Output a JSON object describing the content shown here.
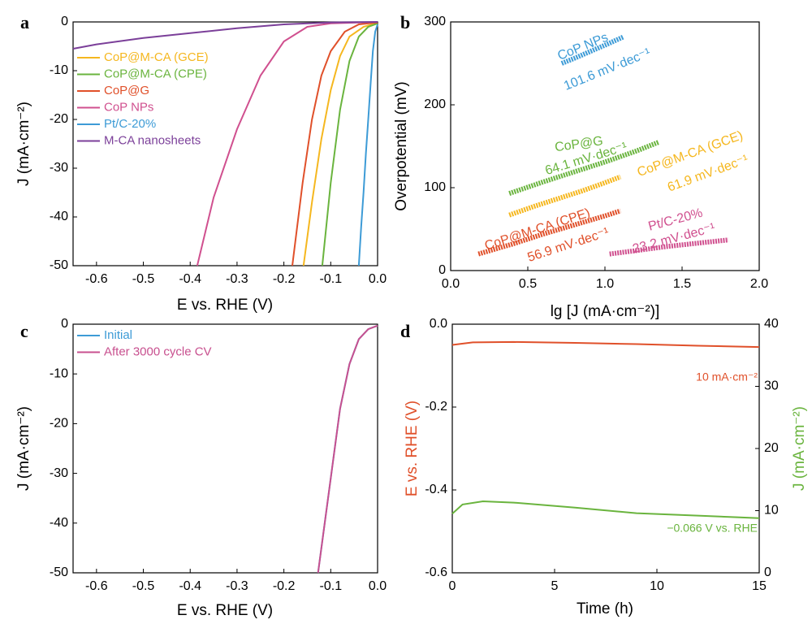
{
  "chart_data": [
    {
      "type": "line",
      "panel_label": "a",
      "xlabel": "E vs. RHE (V)",
      "ylabel": "J (mA·cm⁻²)",
      "xlim": [
        -0.65,
        0
      ],
      "ylim": [
        -50,
        0
      ],
      "xticks": [
        -0.6,
        -0.5,
        -0.4,
        -0.3,
        -0.2,
        -0.1,
        {
          "value": 0,
          "label": "0.0"
        }
      ],
      "yticks": [
        0,
        -10,
        -20,
        -30,
        -40,
        -50
      ],
      "legend": "upper left",
      "series": [
        {
          "name": "CoP@M-CA (GCE)",
          "color": "#f5b71f",
          "x": [
            0,
            -0.03,
            -0.06,
            -0.08,
            -0.1,
            -0.12,
            -0.14,
            -0.158
          ],
          "values": [
            -0.2,
            -1,
            -3,
            -7,
            -14,
            -24,
            -37,
            -50
          ]
        },
        {
          "name": "CoP@M-CA (CPE)",
          "color": "#6ab43e",
          "x": [
            0,
            -0.02,
            -0.04,
            -0.06,
            -0.08,
            -0.1,
            -0.118
          ],
          "values": [
            -0.3,
            -1,
            -3,
            -8,
            -18,
            -33,
            -50
          ]
        },
        {
          "name": "CoP@G",
          "color": "#e0502a",
          "x": [
            0,
            -0.04,
            -0.07,
            -0.1,
            -0.12,
            -0.14,
            -0.16,
            -0.182
          ],
          "values": [
            -0.1,
            -0.5,
            -2,
            -6,
            -11,
            -20,
            -33,
            -50
          ]
        },
        {
          "name": "CoP NPs",
          "color": "#d0508f",
          "x": [
            0,
            -0.1,
            -0.15,
            -0.2,
            -0.25,
            -0.3,
            -0.35,
            -0.385
          ],
          "values": [
            0,
            -0.3,
            -1,
            -4,
            -11,
            -22,
            -36,
            -50
          ]
        },
        {
          "name": "Pt/C-20%",
          "color": "#3d9bd6",
          "x": [
            0,
            -0.005,
            -0.01,
            -0.015,
            -0.02,
            -0.025,
            -0.03,
            -0.035,
            -0.04
          ],
          "values": [
            -0.5,
            -2,
            -6,
            -13,
            -20,
            -27,
            -35,
            -42,
            -50
          ]
        },
        {
          "name": "M-CA nanosheets",
          "color": "#7b3f99",
          "x": [
            0,
            -0.1,
            -0.2,
            -0.3,
            -0.4,
            -0.5,
            -0.6,
            -0.65
          ],
          "values": [
            0,
            -0.1,
            -0.5,
            -1.3,
            -2.3,
            -3.3,
            -4.6,
            -5.5
          ]
        }
      ]
    },
    {
      "type": "line",
      "panel_label": "b",
      "xlabel": "lg [J (mA·cm⁻²)]",
      "ylabel": "Overpotential (mV)",
      "xlim": [
        0,
        2
      ],
      "ylim": [
        0,
        300
      ],
      "xticks": [
        {
          "value": 0,
          "label": "0.0"
        },
        0.5,
        {
          "value": 1,
          "label": "1.0"
        },
        1.5,
        {
          "value": 2,
          "label": "2.0"
        }
      ],
      "yticks": [
        0,
        100,
        200,
        300
      ],
      "series": [
        {
          "name": "CoP NPs",
          "slope_label": "101.6 mV·dec⁻¹",
          "color": "#3d9bd6",
          "x": [
            0.72,
            0.8,
            0.9,
            1.0,
            1.12
          ],
          "values": [
            250,
            256,
            264,
            272,
            282
          ]
        },
        {
          "name": "CoP@G",
          "slope_label": "64.1 mV·dec⁻¹",
          "color": "#6ab43e",
          "x": [
            0.38,
            0.6,
            0.8,
            1.0,
            1.2,
            1.35
          ],
          "values": [
            93,
            107,
            119,
            131,
            144,
            155
          ]
        },
        {
          "name": "CoP@M-CA (GCE)",
          "slope_label": "61.9 mV·dec⁻¹",
          "color": "#f5b71f",
          "x": [
            0.38,
            0.55,
            0.7,
            0.85,
            1.0,
            1.1
          ],
          "values": [
            67,
            78,
            87,
            96,
            106,
            113
          ]
        },
        {
          "name": "CoP@M-CA (CPE)",
          "slope_label": "56.9 mV·dec⁻¹",
          "color": "#e0502a",
          "x": [
            0.18,
            0.4,
            0.6,
            0.8,
            1.0,
            1.1
          ],
          "values": [
            20,
            32,
            44,
            55,
            66,
            72
          ]
        },
        {
          "name": "Pt/C-20%",
          "slope_label": "23.2 mV·dec⁻¹",
          "color": "#d0508f",
          "x": [
            1.03,
            1.2,
            1.4,
            1.6,
            1.8
          ],
          "values": [
            20,
            24,
            29,
            33,
            37
          ]
        }
      ]
    },
    {
      "type": "line",
      "panel_label": "c",
      "xlabel": "E vs. RHE (V)",
      "ylabel": "J (mA·cm⁻²)",
      "xlim": [
        -0.65,
        0
      ],
      "ylim": [
        -50,
        0
      ],
      "xticks": [
        -0.6,
        -0.5,
        -0.4,
        -0.3,
        -0.2,
        -0.1,
        {
          "value": 0,
          "label": "0.0"
        }
      ],
      "yticks": [
        0,
        -10,
        -20,
        -30,
        -40,
        -50
      ],
      "legend": "upper left",
      "series": [
        {
          "name": "Initial",
          "color": "#3d9bd6",
          "x": [
            0,
            -0.02,
            -0.04,
            -0.06,
            -0.08,
            -0.1,
            -0.12,
            -0.127
          ],
          "values": [
            -0.3,
            -1,
            -3,
            -8,
            -17,
            -31,
            -45,
            -50
          ]
        },
        {
          "name": "After 3000 cycle CV",
          "color": "#c8508f",
          "x": [
            0,
            -0.02,
            -0.04,
            -0.06,
            -0.08,
            -0.1,
            -0.12,
            -0.127
          ],
          "values": [
            -0.3,
            -1,
            -3,
            -8,
            -17,
            -31,
            -45,
            -50
          ]
        }
      ]
    },
    {
      "type": "line",
      "panel_label": "d",
      "xlabel": "Time (h)",
      "ylabel": "E vs. RHE (V)",
      "ylabel_color": "#e0502a",
      "y2label": "J (mA·cm⁻²)",
      "y2label_color": "#6ab43e",
      "xlim": [
        0,
        15
      ],
      "ylim": [
        -0.6,
        0
      ],
      "y2lim": [
        0,
        40
      ],
      "xticks": [
        0,
        5,
        10,
        15
      ],
      "yticks": [
        {
          "value": 0,
          "label": "0.0"
        },
        -0.2,
        -0.4,
        -0.6
      ],
      "y2ticks": [
        0,
        10,
        20,
        30,
        40
      ],
      "annotations": [
        {
          "text": "10 mA·cm⁻²",
          "color": "#e0502a"
        },
        {
          "text": "−0.066 V vs. RHE",
          "color": "#6ab43e"
        }
      ],
      "series": [
        {
          "color": "#e0502a",
          "x": [
            0,
            1,
            3,
            6,
            9,
            12,
            15
          ],
          "values": [
            -0.05,
            -0.044,
            -0.043,
            -0.045,
            -0.048,
            -0.052,
            -0.055
          ]
        },
        {
          "color": "#6ab43e",
          "axis": "y2",
          "x": [
            0,
            0.5,
            1.5,
            3,
            6,
            9,
            12,
            15
          ],
          "values": [
            9.5,
            11,
            11.5,
            11.3,
            10.5,
            9.6,
            9.2,
            8.8
          ]
        }
      ]
    }
  ]
}
